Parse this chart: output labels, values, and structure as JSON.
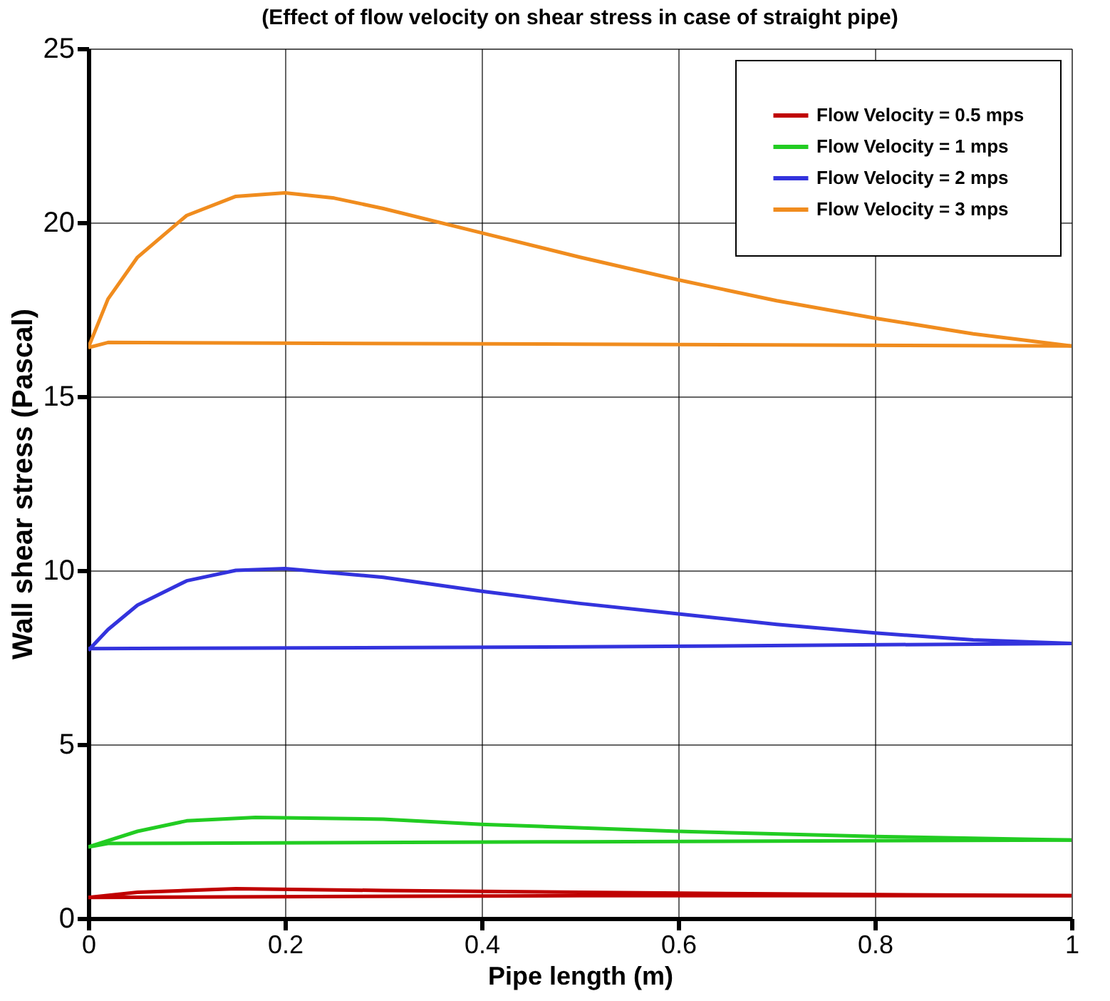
{
  "chart_data": {
    "type": "line",
    "title": "(Effect of flow velocity on shear stress in case of straight pipe)",
    "xlabel": "Pipe length (m)",
    "ylabel": "Wall shear stress (Pascal)",
    "xlim": [
      0,
      1
    ],
    "xticks": [
      0,
      0.2,
      0.4,
      0.6,
      0.8,
      1
    ],
    "ylim": [
      0,
      25
    ],
    "yticks": [
      0,
      5,
      10,
      15,
      20,
      25
    ],
    "grid": true,
    "legend": "top right",
    "line_style": "solid",
    "marker": "none",
    "series": [
      {
        "name": "Flow Velocity = 0.5 mps",
        "color": "#c00000",
        "x": [
          0,
          0.05,
          0.15,
          0.3,
          0.5,
          0.7,
          1
        ],
        "values": [
          0.6,
          0.75,
          0.85,
          0.8,
          0.75,
          0.7,
          0.65
        ]
      },
      {
        "color": "#c00000",
        "x": [
          0,
          0.5,
          1
        ],
        "values": [
          0.6,
          0.65,
          0.65
        ]
      },
      {
        "name": "Flow Velocity = 1 mps",
        "color": "#22cc22",
        "x": [
          0,
          0.05,
          0.1,
          0.17,
          0.3,
          0.4,
          0.6,
          0.8,
          1
        ],
        "values": [
          2.05,
          2.5,
          2.8,
          2.9,
          2.85,
          2.7,
          2.5,
          2.35,
          2.25
        ]
      },
      {
        "color": "#22cc22",
        "x": [
          0,
          0.02,
          0.5,
          1
        ],
        "values": [
          2.05,
          2.15,
          2.2,
          2.25
        ]
      },
      {
        "name": "Flow Velocity = 2 mps",
        "color": "#3333dd",
        "x": [
          0,
          0.02,
          0.05,
          0.1,
          0.15,
          0.2,
          0.3,
          0.4,
          0.5,
          0.6,
          0.7,
          0.8,
          0.9,
          1
        ],
        "values": [
          7.7,
          8.3,
          9.0,
          9.7,
          10.0,
          10.05,
          9.8,
          9.4,
          9.05,
          8.75,
          8.45,
          8.2,
          8.0,
          7.9
        ]
      },
      {
        "color": "#3333dd",
        "x": [
          0,
          0.5,
          1
        ],
        "values": [
          7.75,
          7.8,
          7.9
        ]
      },
      {
        "name": "Flow Velocity = 3 mps",
        "color": "#f08c1e",
        "x": [
          0,
          0.02,
          0.05,
          0.1,
          0.15,
          0.2,
          0.25,
          0.3,
          0.4,
          0.5,
          0.6,
          0.7,
          0.8,
          0.9,
          1
        ],
        "values": [
          16.4,
          17.8,
          19.0,
          20.2,
          20.75,
          20.85,
          20.7,
          20.4,
          19.7,
          19.0,
          18.35,
          17.75,
          17.25,
          16.8,
          16.45
        ]
      },
      {
        "color": "#f08c1e",
        "x": [
          0,
          0.02,
          0.5,
          1
        ],
        "values": [
          16.4,
          16.55,
          16.5,
          16.45
        ]
      }
    ]
  }
}
